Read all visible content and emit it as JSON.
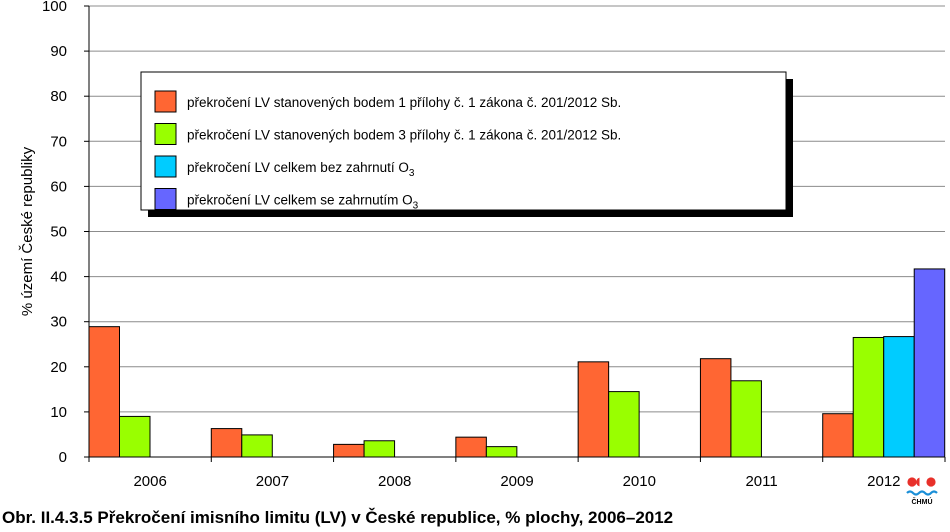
{
  "chart_data": {
    "type": "bar",
    "categories": [
      "2006",
      "2007",
      "2008",
      "2009",
      "2010",
      "2011",
      "2012"
    ],
    "series": [
      {
        "name": "překročení LV stanovených bodem 1 přílohy č. 1 zákona č. 201/2012 Sb.",
        "color": "#FF6633",
        "values": [
          28.9,
          6.3,
          2.8,
          4.4,
          21.1,
          21.8,
          9.6
        ]
      },
      {
        "name": "překročení LV stanovených bodem 3 přílohy č. 1 zákona č. 201/2012 Sb.",
        "color": "#99FF00",
        "values": [
          9.0,
          4.9,
          3.6,
          2.3,
          14.5,
          16.9,
          26.5
        ]
      },
      {
        "name": "překročení LV celkem bez zahrnutí O",
        "name_sub": "3",
        "color": "#00CCFF",
        "values": [
          null,
          null,
          null,
          null,
          null,
          null,
          26.7
        ]
      },
      {
        "name": "překročení LV celkem se zahrnutím O",
        "name_sub": "3",
        "color": "#6666FF",
        "values": [
          null,
          null,
          null,
          null,
          null,
          null,
          41.7
        ]
      }
    ],
    "yticks": [
      "0",
      "10",
      "20",
      "30",
      "40",
      "50",
      "60",
      "70",
      "80",
      "90",
      "100"
    ],
    "ylim": [
      0,
      100
    ],
    "ylabel": "% území České republiky",
    "xlabel": "",
    "grid": true,
    "legend_position": "top-left inside plot"
  },
  "caption": "Obr. II.4.3.5  Překročení imisního limitu (LV) v České republice, % plochy, 2006–2012",
  "logo_text": "ČHMÚ"
}
